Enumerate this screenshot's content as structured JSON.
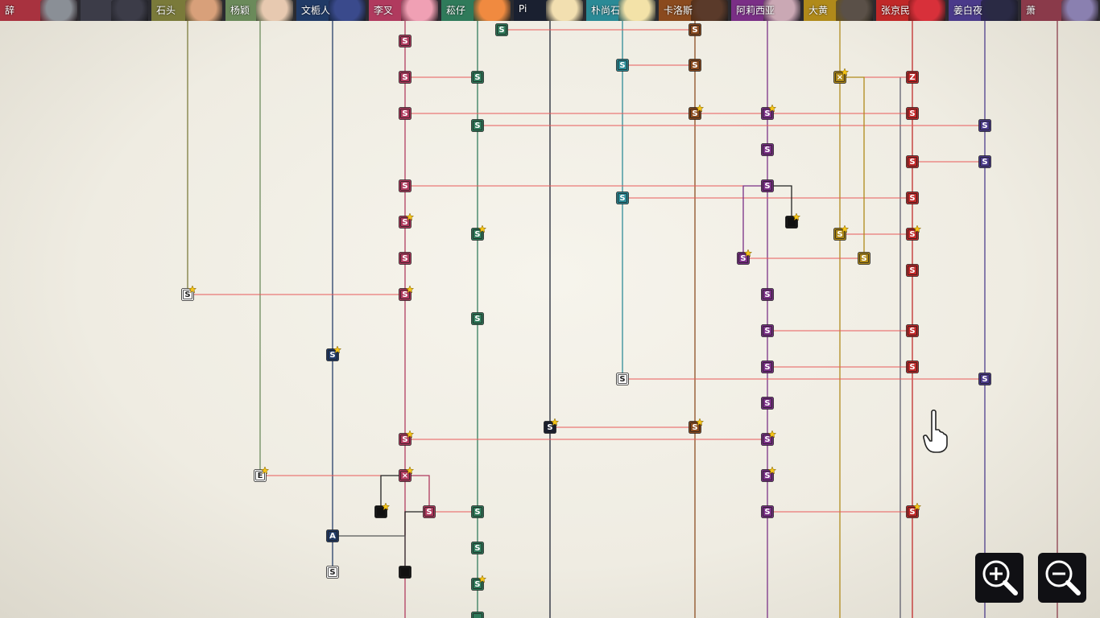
{
  "characters": [
    {
      "id": "c0",
      "label": "辞",
      "color": "#a8323f",
      "face": "#8a8f96"
    },
    {
      "id": "c1",
      "label": "",
      "color": "#3c3c48",
      "face": "#3c3c48"
    },
    {
      "id": "c2",
      "label": "石头",
      "color": "#7a7a3a",
      "face": "#d8a07a"
    },
    {
      "id": "c3",
      "label": "杨颖",
      "color": "#6a8a5a",
      "face": "#e7c9b0"
    },
    {
      "id": "c4",
      "label": "文栀人",
      "color": "#203a66",
      "face": "#3a4a8c"
    },
    {
      "id": "c5",
      "label": "李叉",
      "color": "#b03a5e",
      "face": "#f0a0b4"
    },
    {
      "id": "c6",
      "label": "菘仔",
      "color": "#2f7a5a",
      "face": "#f08a40"
    },
    {
      "id": "c7",
      "label": "Pi",
      "color": "#1a2030",
      "face": "#f2dfb0"
    },
    {
      "id": "c8",
      "label": "朴尚石",
      "color": "#2a8a96",
      "face": "#f3e2a8"
    },
    {
      "id": "c9",
      "label": "卡洛斯",
      "color": "#8a4a1e",
      "face": "#5a3a2a"
    },
    {
      "id": "c10",
      "label": "阿莉西亚",
      "color": "#7a2f86",
      "face": "#caa8b4"
    },
    {
      "id": "c11",
      "label": "大黄",
      "color": "#b08a1a",
      "face": "#5a5048"
    },
    {
      "id": "c12",
      "label": "张京民",
      "color": "#c02828",
      "face": "#d8303a"
    },
    {
      "id": "c13",
      "label": "姜白夜",
      "color": "#4a3a8a",
      "face": "#2a2a44"
    },
    {
      "id": "c14",
      "label": "萧",
      "color": "#8a3a4a",
      "face": "#8a80b0"
    }
  ],
  "nodes": [
    {
      "id": "n1",
      "char": "c6",
      "label": "S",
      "star": false
    },
    {
      "id": "n2",
      "char": "c9",
      "label": "S",
      "star": false
    },
    {
      "id": "n3",
      "char": "c5",
      "label": "S",
      "star": false
    },
    {
      "id": "n4",
      "char": "c8",
      "label": "S",
      "star": false
    },
    {
      "id": "n5",
      "char": "c9",
      "label": "S",
      "star": false
    },
    {
      "id": "n6",
      "char": "c5",
      "label": "S",
      "star": false
    },
    {
      "id": "n7",
      "char": "c6",
      "label": "S",
      "star": false
    },
    {
      "id": "n8",
      "char": "c11",
      "label": "×",
      "star": true
    },
    {
      "id": "n9",
      "char": "c12",
      "label": "Z",
      "star": false
    },
    {
      "id": "n10",
      "char": "c5",
      "label": "S",
      "star": false
    },
    {
      "id": "n11",
      "char": "c9",
      "label": "S",
      "star": true
    },
    {
      "id": "n12",
      "char": "c10",
      "label": "S",
      "star": true
    },
    {
      "id": "n13",
      "char": "c12",
      "label": "S",
      "star": false
    },
    {
      "id": "n14",
      "char": "c6",
      "label": "S",
      "star": false
    },
    {
      "id": "n15",
      "char": "c13",
      "label": "S",
      "star": false
    },
    {
      "id": "n16",
      "char": "c10",
      "label": "S",
      "star": false
    },
    {
      "id": "n17",
      "char": "c12",
      "label": "S",
      "star": false
    },
    {
      "id": "n18",
      "char": "c13",
      "label": "S",
      "star": false
    },
    {
      "id": "n19",
      "char": "c5",
      "label": "S",
      "star": false
    },
    {
      "id": "n20",
      "char": "c10",
      "label": "S",
      "star": false
    },
    {
      "id": "n21",
      "char": "c8",
      "label": "S",
      "star": false
    },
    {
      "id": "n22",
      "char": "c12",
      "label": "S",
      "star": false
    },
    {
      "id": "n23",
      "char": "c5",
      "label": "S",
      "star": true
    },
    {
      "id": "n24",
      "char": "black",
      "label": "",
      "star": true
    },
    {
      "id": "n25",
      "char": "c6",
      "label": "S",
      "star": true
    },
    {
      "id": "n26",
      "char": "c11",
      "label": "S",
      "star": true
    },
    {
      "id": "n27",
      "char": "c12",
      "label": "S",
      "star": true
    },
    {
      "id": "n28",
      "char": "c5",
      "label": "S",
      "star": false
    },
    {
      "id": "n29",
      "char": "c10",
      "label": "S",
      "star": true
    },
    {
      "id": "n30",
      "char": "c11",
      "label": "S",
      "star": false
    },
    {
      "id": "n31",
      "char": "c12",
      "label": "S",
      "star": false
    },
    {
      "id": "n32",
      "char": "white",
      "label": "S",
      "star": true
    },
    {
      "id": "n33",
      "char": "c5",
      "label": "S",
      "star": true
    },
    {
      "id": "n34",
      "char": "c10",
      "label": "S",
      "star": false
    },
    {
      "id": "n35",
      "char": "c6",
      "label": "S",
      "star": false
    },
    {
      "id": "n36",
      "char": "c10",
      "label": "S",
      "star": false
    },
    {
      "id": "n37",
      "char": "c12",
      "label": "S",
      "star": false
    },
    {
      "id": "n38",
      "char": "c4",
      "label": "S",
      "star": true
    },
    {
      "id": "n39",
      "char": "c10",
      "label": "S",
      "star": false
    },
    {
      "id": "n40",
      "char": "c12",
      "label": "S",
      "star": false
    },
    {
      "id": "n41",
      "char": "white",
      "label": "S",
      "star": false
    },
    {
      "id": "n42",
      "char": "c13",
      "label": "S",
      "star": false
    },
    {
      "id": "n43",
      "char": "c10",
      "label": "S",
      "star": false
    },
    {
      "id": "n44",
      "char": "c7",
      "label": "S",
      "star": true
    },
    {
      "id": "n45",
      "char": "c9",
      "label": "S",
      "star": true
    },
    {
      "id": "n46",
      "char": "c5",
      "label": "S",
      "star": true
    },
    {
      "id": "n47",
      "char": "c10",
      "label": "S",
      "star": true
    },
    {
      "id": "n48",
      "char": "white",
      "label": "E",
      "star": true
    },
    {
      "id": "n49",
      "char": "c5",
      "label": "×",
      "star": true
    },
    {
      "id": "n50",
      "char": "c10",
      "label": "S",
      "star": true
    },
    {
      "id": "n51",
      "char": "black",
      "label": "",
      "star": true
    },
    {
      "id": "n52",
      "char": "c5",
      "label": "S",
      "star": false
    },
    {
      "id": "n53",
      "char": "c6",
      "label": "S",
      "star": false
    },
    {
      "id": "n54",
      "char": "c10",
      "label": "S",
      "star": false
    },
    {
      "id": "n55",
      "char": "c12",
      "label": "S",
      "star": true
    },
    {
      "id": "n56",
      "char": "c4",
      "label": "A",
      "star": false
    },
    {
      "id": "n57",
      "char": "c6",
      "label": "S",
      "star": false
    },
    {
      "id": "n58",
      "char": "white",
      "label": "S",
      "star": false
    },
    {
      "id": "n59",
      "char": "black",
      "label": "",
      "star": false
    },
    {
      "id": "n60",
      "char": "c6",
      "label": "S",
      "star": true
    },
    {
      "id": "n61",
      "char": "c6",
      "label": "",
      "star": false
    }
  ],
  "red_links": [
    [
      "n1",
      "n2"
    ],
    [
      "n4",
      "n5"
    ],
    [
      "n6",
      "n7"
    ],
    [
      "n8",
      "n9"
    ],
    [
      "n10",
      "n11"
    ],
    [
      "n11",
      "n12"
    ],
    [
      "n12",
      "n13"
    ],
    [
      "n14",
      "n15"
    ],
    [
      "n17",
      "n18"
    ],
    [
      "n19",
      "n20"
    ],
    [
      "n21",
      "n22"
    ],
    [
      "n26",
      "n27"
    ],
    [
      "n29",
      "n30"
    ],
    [
      "n32",
      "n33"
    ],
    [
      "n36",
      "n37"
    ],
    [
      "n39",
      "n40"
    ],
    [
      "n41",
      "n42"
    ],
    [
      "n44",
      "n45"
    ],
    [
      "n46",
      "n47"
    ],
    [
      "n48",
      "n49"
    ],
    [
      "n52",
      "n53"
    ],
    [
      "n54",
      "n55"
    ]
  ],
  "branches": [
    {
      "from": "n20",
      "to": "n24",
      "color": "#222"
    },
    {
      "from": "n20",
      "to": "n29",
      "color": "#7a2f86"
    },
    {
      "from": "n49",
      "to": "n51",
      "color": "#222"
    },
    {
      "from": "n49",
      "to": "n52",
      "color": "#b03a5e"
    },
    {
      "from": "n52",
      "to": "n59",
      "color": "#222"
    },
    {
      "from": "n56",
      "to": "n59",
      "color": "#555"
    },
    {
      "from": "n8",
      "to": "n30",
      "color": "#b08a1a"
    }
  ],
  "controls": {
    "zoom_in": "zoom-in",
    "zoom_out": "zoom-out"
  },
  "colors": {
    "link": "#e85a5a",
    "white_node": "#ffffff",
    "black_node": "#111111"
  }
}
